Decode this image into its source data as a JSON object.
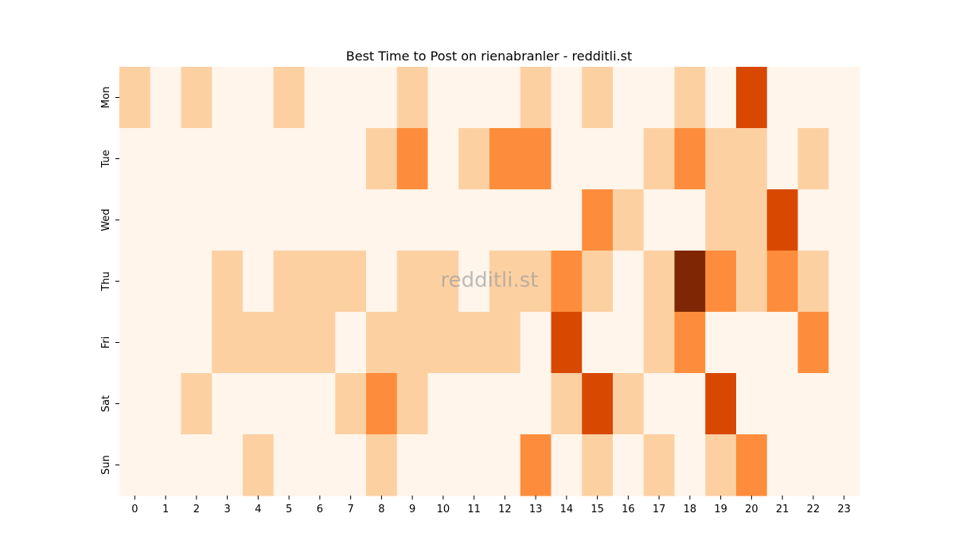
{
  "chart_data": {
    "type": "heatmap",
    "title": "Best Time to Post on rienabranler - redditli.st",
    "watermark": "redditli.st",
    "xlabel": "",
    "ylabel": "",
    "x_categories": [
      "0",
      "1",
      "2",
      "3",
      "4",
      "5",
      "6",
      "7",
      "8",
      "9",
      "10",
      "11",
      "12",
      "13",
      "14",
      "15",
      "16",
      "17",
      "18",
      "19",
      "20",
      "21",
      "22",
      "23"
    ],
    "y_categories": [
      "Mon",
      "Tue",
      "Wed",
      "Thu",
      "Fri",
      "Sat",
      "Sun"
    ],
    "values": [
      [
        1,
        0,
        1,
        0,
        0,
        1,
        0,
        0,
        0,
        1,
        0,
        0,
        0,
        1,
        0,
        1,
        0,
        0,
        1,
        0,
        3,
        0,
        0,
        0
      ],
      [
        0,
        0,
        0,
        0,
        0,
        0,
        0,
        0,
        1,
        2,
        0,
        1,
        2,
        2,
        0,
        0,
        0,
        1,
        2,
        1,
        1,
        0,
        1,
        0
      ],
      [
        0,
        0,
        0,
        0,
        0,
        0,
        0,
        0,
        0,
        0,
        0,
        0,
        0,
        0,
        0,
        2,
        1,
        0,
        0,
        1,
        1,
        3,
        0,
        0
      ],
      [
        0,
        0,
        0,
        1,
        0,
        1,
        1,
        1,
        0,
        1,
        1,
        0,
        1,
        1,
        2,
        1,
        0,
        1,
        4,
        2,
        1,
        2,
        1,
        0
      ],
      [
        0,
        0,
        0,
        1,
        1,
        1,
        1,
        0,
        1,
        1,
        1,
        1,
        1,
        0,
        3,
        0,
        0,
        1,
        2,
        0,
        0,
        0,
        2,
        0
      ],
      [
        0,
        0,
        1,
        0,
        0,
        0,
        0,
        1,
        2,
        1,
        0,
        0,
        0,
        0,
        1,
        3,
        1,
        0,
        0,
        3,
        0,
        0,
        0,
        0
      ],
      [
        0,
        0,
        0,
        0,
        1,
        0,
        0,
        0,
        1,
        0,
        0,
        0,
        0,
        2,
        0,
        1,
        0,
        1,
        0,
        1,
        2,
        0,
        0,
        0
      ]
    ],
    "color_scale": [
      "#fff5eb",
      "#fdd0a2",
      "#fd8d3c",
      "#d94801",
      "#7f2704"
    ],
    "colorbar": false,
    "grid": false
  }
}
